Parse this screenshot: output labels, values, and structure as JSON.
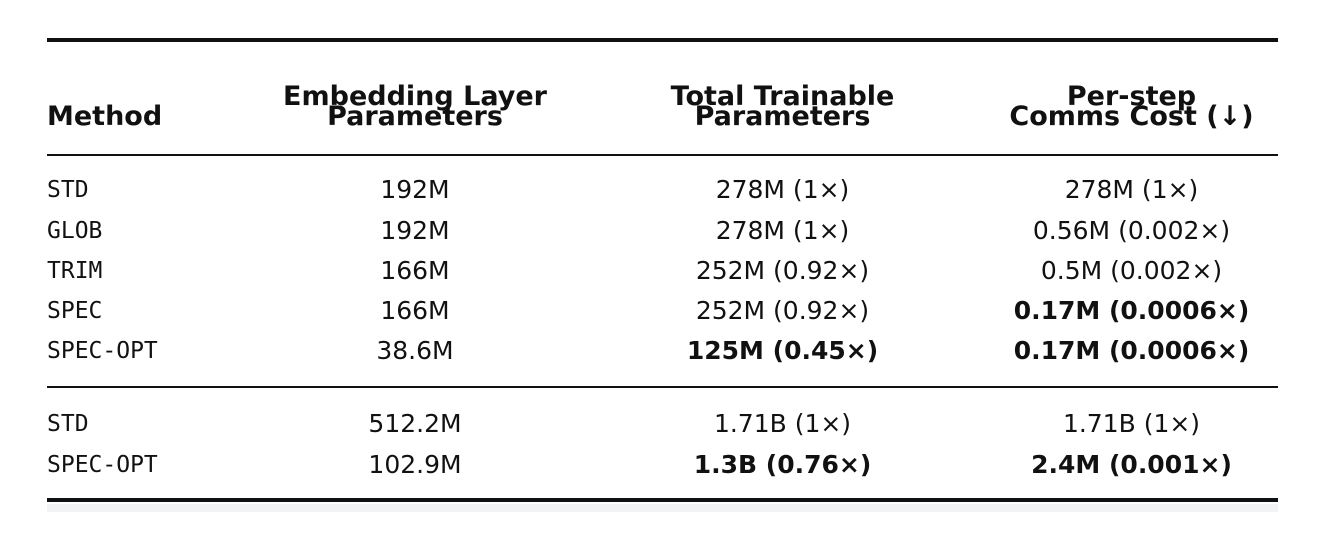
{
  "table": {
    "header": [
      [
        "Method"
      ],
      [
        "Embedding Layer",
        "Parameters"
      ],
      [
        "Total Trainable",
        "Parameters"
      ],
      [
        "Per-step",
        "Comms Cost (↓)"
      ]
    ],
    "rows": [
      [
        "STD",
        "192M",
        "278M (1×)",
        "278M (1×)"
      ],
      [
        "GLOB",
        "192M",
        "278M (1×)",
        "0.56M (0.002×)"
      ],
      [
        "TRIM",
        "166M",
        "252M (0.92×)",
        "0.5M (0.002×)"
      ],
      [
        "SPEC",
        "166M",
        "252M (0.92×)",
        "0.17M (0.0006×)"
      ],
      [
        "SPEC-OPT",
        "38.6M",
        "125M (0.45×)",
        "0.17M (0.0006×)"
      ],
      [
        "STD",
        "512.2M",
        "1.71B (1×)",
        "1.71B (1×)"
      ],
      [
        "SPEC-OPT",
        "102.9M",
        "1.3B (0.76×)",
        "2.4M (0.001×)"
      ]
    ]
  }
}
